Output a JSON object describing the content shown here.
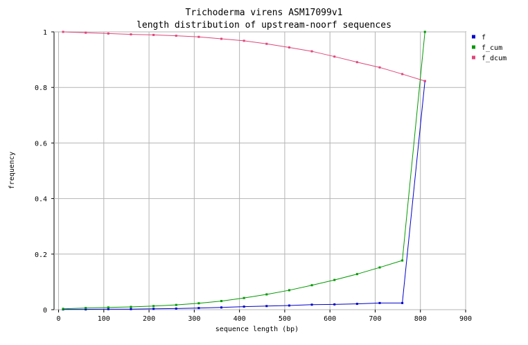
{
  "chart_data": {
    "type": "line",
    "title": "Trichoderma virens ASM17099v1",
    "subtitle": "length distribution of upstream-noorf sequences",
    "xlabel": "sequence length (bp)",
    "ylabel": "frequency",
    "xlim": [
      -10,
      900
    ],
    "ylim": [
      0,
      1
    ],
    "x_ticks": [
      "0",
      "100",
      "200",
      "300",
      "400",
      "500",
      "600",
      "700",
      "800",
      "900"
    ],
    "y_ticks": [
      "0",
      "0.2",
      "0.4",
      "0.6",
      "0.8",
      "1"
    ],
    "grid": true,
    "legend_position": "right",
    "x": [
      0,
      50,
      100,
      150,
      200,
      250,
      300,
      350,
      400,
      450,
      500,
      550,
      600,
      650,
      700,
      750,
      800
    ],
    "series": [
      {
        "name": "f",
        "color": "#0000cc",
        "values": [
          0.001,
          0.001,
          0.002,
          0.002,
          0.003,
          0.004,
          0.006,
          0.008,
          0.011,
          0.013,
          0.015,
          0.018,
          0.019,
          0.021,
          0.024,
          0.024,
          0.823
        ]
      },
      {
        "name": "f_cum",
        "color": "#009900",
        "values": [
          0.003,
          0.006,
          0.008,
          0.01,
          0.013,
          0.017,
          0.023,
          0.031,
          0.042,
          0.055,
          0.07,
          0.088,
          0.107,
          0.128,
          0.152,
          0.177,
          1.0
        ]
      },
      {
        "name": "f_dcum",
        "color": "#e0457b",
        "values": [
          1.0,
          0.997,
          0.994,
          0.991,
          0.989,
          0.986,
          0.982,
          0.975,
          0.968,
          0.957,
          0.944,
          0.93,
          0.911,
          0.891,
          0.872,
          0.848,
          0.823
        ]
      }
    ]
  }
}
